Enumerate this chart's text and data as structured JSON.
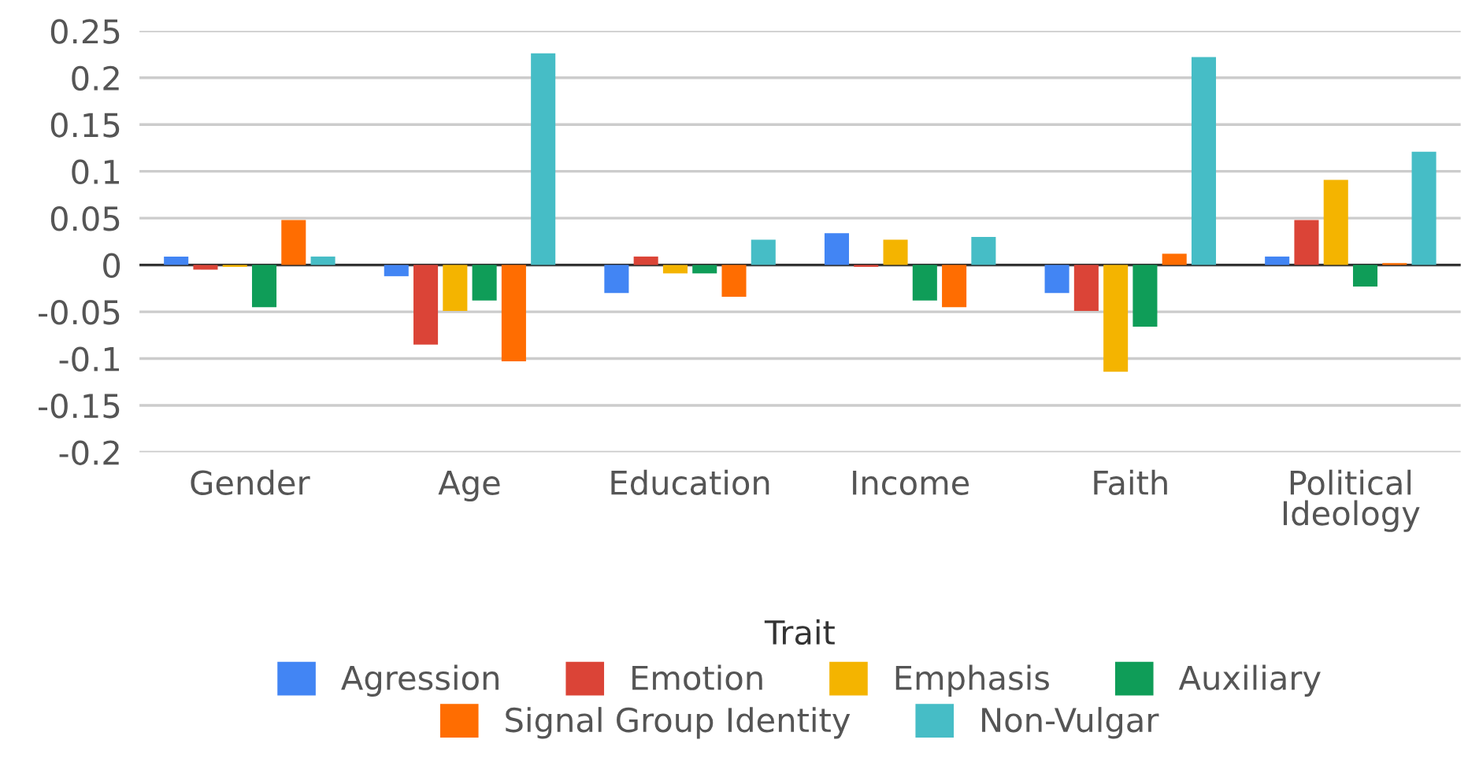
{
  "chart_data": {
    "type": "bar",
    "xlabel": "Trait",
    "categories": [
      "Gender",
      "Age",
      "Education",
      "Income",
      "Faith",
      "Political Ideology"
    ],
    "series": [
      {
        "name": "Agression",
        "color": "#4285f4",
        "values": [
          0.009,
          -0.012,
          -0.03,
          0.034,
          -0.03,
          0.009
        ]
      },
      {
        "name": "Emotion",
        "color": "#db4437",
        "values": [
          -0.005,
          -0.085,
          0.009,
          -0.002,
          -0.049,
          0.048
        ]
      },
      {
        "name": "Emphasis",
        "color": "#f4b400",
        "values": [
          -0.002,
          -0.049,
          -0.009,
          0.027,
          -0.114,
          0.091
        ]
      },
      {
        "name": "Auxiliary",
        "color": "#0f9d58",
        "values": [
          -0.045,
          -0.038,
          -0.009,
          -0.038,
          -0.066,
          -0.023
        ]
      },
      {
        "name": "Signal Group Identity",
        "color": "#ff6d01",
        "values": [
          0.048,
          -0.103,
          -0.034,
          -0.045,
          0.012,
          0.002
        ]
      },
      {
        "name": "Non-Vulgar",
        "color": "#46bdc6",
        "values": [
          0.009,
          0.226,
          0.027,
          0.03,
          0.222,
          0.121
        ]
      }
    ],
    "ylim": [
      -0.2,
      0.25
    ],
    "yticks": [
      -0.2,
      -0.15,
      -0.1,
      -0.05,
      0,
      0.05,
      0.1,
      0.15,
      0.2,
      0.25
    ],
    "grid": "y",
    "legend": "bottom"
  }
}
